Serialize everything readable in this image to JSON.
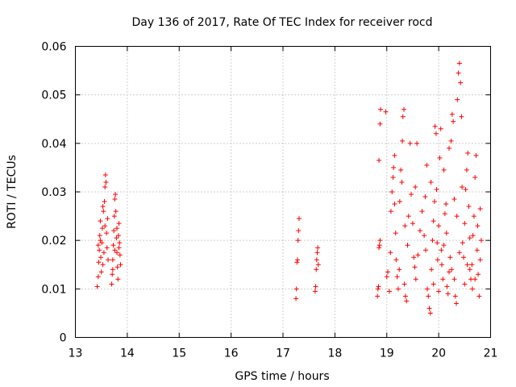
{
  "chart_data": {
    "type": "scatter",
    "title": "Day 136 of 2017, Rate Of TEC Index for receiver rocd",
    "xlabel": "GPS time / hours",
    "ylabel": "ROTI / TECUs",
    "xlim": [
      13,
      21
    ],
    "ylim": [
      0,
      0.06
    ],
    "xticks": [
      "13",
      "14",
      "15",
      "16",
      "17",
      "18",
      "19",
      "20",
      "21"
    ],
    "yticks": [
      "0",
      "0.01",
      "0.02",
      "0.03",
      "0.04",
      "0.05",
      "0.06"
    ],
    "grid": true,
    "marker": "plus",
    "color": "#ff0000",
    "series": [
      {
        "name": "ROTI",
        "points": [
          [
            13.42,
            0.0105
          ],
          [
            13.44,
            0.0125
          ],
          [
            13.45,
            0.0155
          ],
          [
            13.46,
            0.018
          ],
          [
            13.47,
            0.021
          ],
          [
            13.48,
            0.024
          ],
          [
            13.49,
            0.0165
          ],
          [
            13.5,
            0.0135
          ],
          [
            13.51,
            0.0195
          ],
          [
            13.52,
            0.0225
          ],
          [
            13.53,
            0.015
          ],
          [
            13.54,
            0.026
          ],
          [
            13.55,
            0.0175
          ],
          [
            13.56,
            0.028
          ],
          [
            13.57,
            0.031
          ],
          [
            13.58,
            0.0335
          ],
          [
            13.59,
            0.032
          ],
          [
            13.6,
            0.0215
          ],
          [
            13.61,
            0.0185
          ],
          [
            13.62,
            0.0245
          ],
          [
            13.63,
            0.016
          ],
          [
            13.44,
            0.019
          ],
          [
            13.48,
            0.02
          ],
          [
            13.53,
            0.027
          ],
          [
            13.57,
            0.023
          ],
          [
            13.7,
            0.011
          ],
          [
            13.71,
            0.013
          ],
          [
            13.72,
            0.016
          ],
          [
            13.73,
            0.019
          ],
          [
            13.74,
            0.022
          ],
          [
            13.75,
            0.025
          ],
          [
            13.76,
            0.0285
          ],
          [
            13.77,
            0.0295
          ],
          [
            13.78,
            0.026
          ],
          [
            13.79,
            0.0205
          ],
          [
            13.8,
            0.0175
          ],
          [
            13.81,
            0.0145
          ],
          [
            13.82,
            0.012
          ],
          [
            13.83,
            0.021
          ],
          [
            13.84,
            0.0235
          ],
          [
            13.85,
            0.0195
          ],
          [
            13.86,
            0.017
          ],
          [
            13.87,
            0.015
          ],
          [
            13.72,
            0.014
          ],
          [
            13.76,
            0.018
          ],
          [
            13.8,
            0.0225
          ],
          [
            13.84,
            0.0185
          ],
          [
            17.25,
            0.008
          ],
          [
            17.26,
            0.01
          ],
          [
            17.27,
            0.0155
          ],
          [
            17.28,
            0.016
          ],
          [
            17.29,
            0.02
          ],
          [
            17.3,
            0.022
          ],
          [
            17.31,
            0.0245
          ],
          [
            17.62,
            0.0095
          ],
          [
            17.63,
            0.0105
          ],
          [
            17.64,
            0.014
          ],
          [
            17.65,
            0.016
          ],
          [
            17.66,
            0.0175
          ],
          [
            17.67,
            0.0185
          ],
          [
            17.68,
            0.015
          ],
          [
            18.82,
            0.0085
          ],
          [
            18.83,
            0.01
          ],
          [
            18.84,
            0.0105
          ],
          [
            18.85,
            0.0185
          ],
          [
            18.86,
            0.019
          ],
          [
            18.87,
            0.02
          ],
          [
            18.85,
            0.0365
          ],
          [
            18.87,
            0.044
          ],
          [
            18.88,
            0.047
          ],
          [
            18.98,
            0.0465
          ],
          [
            19.0,
            0.0125
          ],
          [
            19.02,
            0.0135
          ],
          [
            19.05,
            0.0095
          ],
          [
            19.07,
            0.0175
          ],
          [
            19.08,
            0.026
          ],
          [
            19.1,
            0.03
          ],
          [
            19.12,
            0.033
          ],
          [
            19.13,
            0.035
          ],
          [
            19.15,
            0.0375
          ],
          [
            19.17,
            0.0215
          ],
          [
            19.18,
            0.016
          ],
          [
            19.2,
            0.0125
          ],
          [
            19.22,
            0.01
          ],
          [
            19.24,
            0.014
          ],
          [
            19.25,
            0.028
          ],
          [
            19.27,
            0.0345
          ],
          [
            19.29,
            0.032
          ],
          [
            19.3,
            0.0405
          ],
          [
            19.31,
            0.0455
          ],
          [
            19.33,
            0.047
          ],
          [
            19.34,
            0.011
          ],
          [
            19.36,
            0.0085
          ],
          [
            19.38,
            0.0075
          ],
          [
            19.4,
            0.019
          ],
          [
            19.42,
            0.025
          ],
          [
            19.45,
            0.04
          ],
          [
            19.47,
            0.0295
          ],
          [
            19.5,
            0.0235
          ],
          [
            19.52,
            0.0165
          ],
          [
            19.54,
            0.0145
          ],
          [
            19.56,
            0.012
          ],
          [
            19.58,
            0.04
          ],
          [
            19.72,
            0.021
          ],
          [
            19.75,
            0.018
          ],
          [
            19.77,
            0.0355
          ],
          [
            19.78,
            0.01
          ],
          [
            19.8,
            0.0085
          ],
          [
            19.82,
            0.006
          ],
          [
            19.84,
            0.005
          ],
          [
            19.86,
            0.014
          ],
          [
            19.88,
            0.02
          ],
          [
            19.9,
            0.024
          ],
          [
            19.92,
            0.028
          ],
          [
            19.93,
            0.0435
          ],
          [
            19.95,
            0.042
          ],
          [
            19.96,
            0.0305
          ],
          [
            19.98,
            0.016
          ],
          [
            20.0,
            0.023
          ],
          [
            20.02,
            0.037
          ],
          [
            20.04,
            0.043
          ],
          [
            20.06,
            0.015
          ],
          [
            20.08,
            0.012
          ],
          [
            20.1,
            0.019
          ],
          [
            20.12,
            0.0255
          ],
          [
            20.14,
            0.0275
          ],
          [
            20.16,
            0.0105
          ],
          [
            20.18,
            0.009
          ],
          [
            20.2,
            0.0135
          ],
          [
            20.22,
            0.0165
          ],
          [
            20.24,
            0.0405
          ],
          [
            20.26,
            0.046
          ],
          [
            20.28,
            0.0445
          ],
          [
            20.3,
            0.012
          ],
          [
            20.32,
            0.0085
          ],
          [
            20.34,
            0.007
          ],
          [
            20.36,
            0.049
          ],
          [
            20.38,
            0.0545
          ],
          [
            20.4,
            0.0565
          ],
          [
            20.42,
            0.0525
          ],
          [
            20.44,
            0.0455
          ],
          [
            20.46,
            0.0195
          ],
          [
            20.48,
            0.0165
          ],
          [
            20.5,
            0.0235
          ],
          [
            20.52,
            0.0305
          ],
          [
            20.54,
            0.0345
          ],
          [
            20.56,
            0.038
          ],
          [
            20.58,
            0.027
          ],
          [
            20.6,
            0.014
          ],
          [
            20.62,
            0.012
          ],
          [
            20.64,
            0.015
          ],
          [
            20.66,
            0.021
          ],
          [
            20.68,
            0.025
          ],
          [
            20.7,
            0.033
          ],
          [
            20.72,
            0.0375
          ],
          [
            20.74,
            0.018
          ],
          [
            20.76,
            0.013
          ],
          [
            20.78,
            0.0085
          ],
          [
            20.8,
            0.016
          ],
          [
            20.82,
            0.02
          ],
          [
            19.6,
            0.017
          ],
          [
            19.64,
            0.022
          ],
          [
            19.68,
            0.026
          ],
          [
            19.74,
            0.029
          ],
          [
            19.85,
            0.032
          ],
          [
            19.97,
            0.0195
          ],
          [
            20.05,
            0.018
          ],
          [
            20.15,
            0.0215
          ],
          [
            20.25,
            0.014
          ],
          [
            20.35,
            0.025
          ],
          [
            20.45,
            0.031
          ],
          [
            20.55,
            0.015
          ],
          [
            20.65,
            0.01
          ],
          [
            20.75,
            0.023
          ],
          [
            19.15,
            0.0275
          ],
          [
            19.35,
            0.023
          ],
          [
            19.55,
            0.031
          ],
          [
            19.9,
            0.011
          ],
          [
            20.0,
            0.0095
          ],
          [
            20.1,
            0.0345
          ],
          [
            20.2,
            0.039
          ],
          [
            20.3,
            0.0285
          ],
          [
            20.4,
            0.0175
          ],
          [
            20.5,
            0.011
          ],
          [
            20.6,
            0.0205
          ],
          [
            20.7,
            0.012
          ],
          [
            20.8,
            0.0265
          ]
        ]
      }
    ]
  }
}
